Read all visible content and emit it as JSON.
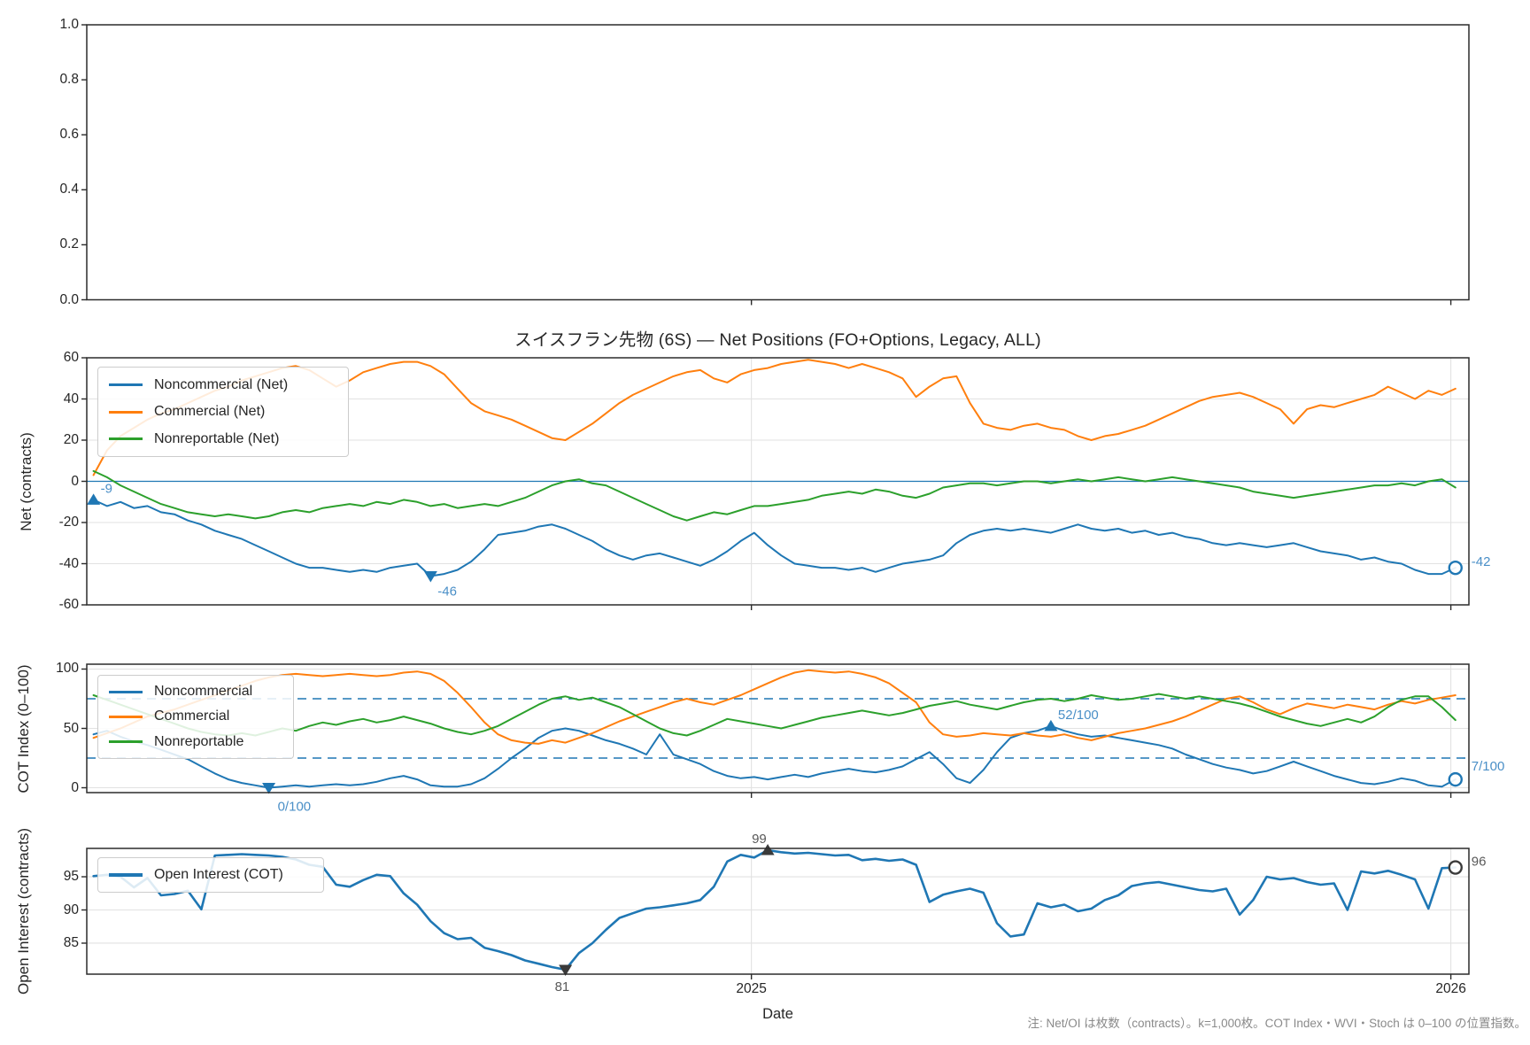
{
  "title": "スイスフラン先物 (6S) — Net Positions (FO+Options, Legacy, ALL)",
  "xlabel": "Date",
  "footnote": "注: Net/OI は枚数（contracts）。k=1,000枚。COT Index・WVI・Stoch は 0–100 の位置指数。",
  "colors": {
    "noncommercial": "#1f77b4",
    "commercial": "#ff7f0e",
    "nonreportable": "#2ca02c",
    "open_interest": "#1f77b4",
    "annotation_blue": "#4a8fc7",
    "annotation_gray": "#595959",
    "marker_dark": "#3a3a3a",
    "dashed": "#1f77b4",
    "grid": "#e2e2e2",
    "spine": "#2b2b2b"
  },
  "x_axis": {
    "label": "Date",
    "tick_labels": [
      "2025",
      "2026"
    ],
    "tick_positions": [
      48.79,
      100.66
    ],
    "n_points": 102,
    "x_unit": "week_index"
  },
  "chart_data": [
    {
      "type": "line",
      "panel": "top-empty",
      "ylabel": "",
      "ylim": [
        0,
        1
      ],
      "ytick_labels": [
        "0.0",
        "0.2",
        "0.4",
        "0.6",
        "0.8",
        "1.0"
      ],
      "ytick_values": [
        0,
        0.2,
        0.4,
        0.6,
        0.8,
        1.0
      ],
      "grid": false,
      "series": []
    },
    {
      "type": "line",
      "panel": "net-positions",
      "ylabel": "Net (contracts)",
      "ylim": [
        -60,
        60
      ],
      "ytick_labels": [
        "-60",
        "-40",
        "-20",
        "0",
        "20",
        "40",
        "60"
      ],
      "ytick_values": [
        -60,
        -40,
        -20,
        0,
        20,
        40,
        60
      ],
      "grid": true,
      "zero_line": true,
      "legend_position": "upper-left",
      "series": [
        {
          "name": "Noncommercial (Net)",
          "color_key": "noncommercial",
          "values": [
            -9,
            -12,
            -10,
            -13,
            -12,
            -15,
            -16,
            -19,
            -21,
            -24,
            -26,
            -28,
            -31,
            -34,
            -37,
            -40,
            -42,
            -42,
            -43,
            -44,
            -43,
            -44,
            -42,
            -41,
            -40,
            -46,
            -45,
            -43,
            -39,
            -33,
            -26,
            -25,
            -24,
            -22,
            -21,
            -23,
            -26,
            -29,
            -33,
            -36,
            -38,
            -36,
            -35,
            -37,
            -39,
            -41,
            -38,
            -34,
            -29,
            -25,
            -31,
            -36,
            -40,
            -41,
            -42,
            -42,
            -43,
            -42,
            -44,
            -42,
            -40,
            -39,
            -38,
            -36,
            -30,
            -26,
            -24,
            -23,
            -24,
            -23,
            -24,
            -25,
            -23,
            -21,
            -23,
            -24,
            -23,
            -25,
            -24,
            -26,
            -25,
            -27,
            -28,
            -30,
            -31,
            -30,
            -31,
            -32,
            -31,
            -30,
            -32,
            -34,
            -35,
            -36,
            -38,
            -37,
            -39,
            -40,
            -43,
            -45,
            -45,
            -42
          ]
        },
        {
          "name": "Commercial (Net)",
          "color_key": "commercial",
          "values": [
            3,
            15,
            22,
            26,
            30,
            33,
            35,
            38,
            41,
            44,
            46,
            49,
            51,
            53,
            55,
            56,
            54,
            50,
            46,
            49,
            53,
            55,
            57,
            58,
            58,
            56,
            52,
            45,
            38,
            34,
            32,
            30,
            27,
            24,
            21,
            20,
            24,
            28,
            33,
            38,
            42,
            45,
            48,
            51,
            53,
            54,
            50,
            48,
            52,
            54,
            55,
            57,
            58,
            59,
            58,
            57,
            55,
            57,
            55,
            53,
            50,
            41,
            46,
            50,
            51,
            38,
            28,
            26,
            25,
            27,
            28,
            26,
            25,
            22,
            20,
            22,
            23,
            25,
            27,
            30,
            33,
            36,
            39,
            41,
            42,
            43,
            41,
            38,
            35,
            28,
            35,
            37,
            36,
            38,
            40,
            42,
            46,
            43,
            40,
            44,
            42,
            45
          ]
        },
        {
          "name": "Nonreportable (Net)",
          "color_key": "nonreportable",
          "values": [
            5,
            2,
            -2,
            -5,
            -8,
            -11,
            -13,
            -15,
            -16,
            -17,
            -16,
            -17,
            -18,
            -17,
            -15,
            -14,
            -15,
            -13,
            -12,
            -11,
            -12,
            -10,
            -11,
            -9,
            -10,
            -12,
            -11,
            -13,
            -12,
            -11,
            -12,
            -10,
            -8,
            -5,
            -2,
            0,
            1,
            -1,
            -2,
            -5,
            -8,
            -11,
            -14,
            -17,
            -19,
            -17,
            -15,
            -16,
            -14,
            -12,
            -12,
            -11,
            -10,
            -9,
            -7,
            -6,
            -5,
            -6,
            -4,
            -5,
            -7,
            -8,
            -6,
            -3,
            -2,
            -1,
            -1,
            -2,
            -1,
            0,
            0,
            -1,
            0,
            1,
            0,
            1,
            2,
            1,
            0,
            1,
            2,
            1,
            0,
            -1,
            -2,
            -3,
            -5,
            -6,
            -7,
            -8,
            -7,
            -6,
            -5,
            -4,
            -3,
            -2,
            -2,
            -1,
            -2,
            0,
            1,
            -3
          ]
        }
      ],
      "annotations": [
        {
          "label": "-9",
          "series": "Noncommercial (Net)",
          "index": 0,
          "value": -9,
          "marker": "triangle-up",
          "placement": "above-right",
          "marker_color_key": "noncommercial",
          "text_color_key": "annotation_blue"
        },
        {
          "label": "-46",
          "series": "Noncommercial (Net)",
          "index": 25,
          "value": -46,
          "marker": "triangle-down",
          "placement": "below-right",
          "marker_color_key": "noncommercial",
          "text_color_key": "annotation_blue"
        },
        {
          "label": "-42",
          "series": "Noncommercial (Net)",
          "index": 101,
          "value": -42,
          "marker": "circle-open",
          "placement": "right",
          "marker_color_key": "noncommercial",
          "text_color_key": "annotation_blue"
        }
      ]
    },
    {
      "type": "line",
      "panel": "cot-index",
      "ylabel": "COT Index (0–100)",
      "ylim": [
        -4.1,
        104.1
      ],
      "ytick_labels": [
        "0",
        "50",
        "100"
      ],
      "ytick_values": [
        0,
        50,
        100
      ],
      "grid": true,
      "dashed_hlines": [
        25,
        75
      ],
      "legend_position": "upper-left",
      "series": [
        {
          "name": "Noncommercial",
          "color_key": "noncommercial",
          "values": [
            45,
            48,
            43,
            39,
            36,
            32,
            28,
            24,
            18,
            12,
            7,
            4,
            2,
            0,
            1,
            2,
            1,
            2,
            3,
            2,
            3,
            5,
            8,
            10,
            7,
            2,
            1,
            1,
            3,
            8,
            16,
            25,
            33,
            42,
            48,
            50,
            48,
            44,
            40,
            37,
            33,
            28,
            45,
            28,
            24,
            20,
            14,
            10,
            8,
            9,
            7,
            9,
            11,
            9,
            12,
            14,
            16,
            14,
            13,
            15,
            18,
            24,
            30,
            20,
            8,
            4,
            15,
            30,
            42,
            46,
            48,
            52,
            48,
            45,
            43,
            44,
            42,
            40,
            38,
            36,
            33,
            28,
            24,
            20,
            17,
            15,
            12,
            14,
            18,
            22,
            18,
            14,
            10,
            7,
            4,
            3,
            5,
            8,
            6,
            2,
            1,
            7
          ]
        },
        {
          "name": "Commercial",
          "color_key": "commercial",
          "values": [
            42,
            46,
            50,
            55,
            60,
            63,
            66,
            70,
            74,
            78,
            82,
            86,
            90,
            93,
            95,
            96,
            95,
            94,
            95,
            96,
            95,
            94,
            95,
            97,
            98,
            96,
            90,
            80,
            68,
            55,
            45,
            40,
            38,
            37,
            40,
            38,
            42,
            46,
            51,
            56,
            60,
            64,
            68,
            72,
            75,
            72,
            70,
            74,
            78,
            83,
            88,
            93,
            97,
            99,
            98,
            97,
            98,
            96,
            93,
            88,
            80,
            72,
            55,
            45,
            43,
            44,
            46,
            45,
            44,
            46,
            44,
            43,
            45,
            42,
            40,
            43,
            46,
            48,
            50,
            53,
            56,
            60,
            65,
            70,
            75,
            77,
            72,
            66,
            62,
            67,
            71,
            69,
            67,
            70,
            68,
            66,
            70,
            73,
            71,
            74,
            76,
            78
          ]
        },
        {
          "name": "Nonreportable",
          "color_key": "nonreportable",
          "values": [
            78,
            74,
            70,
            66,
            62,
            58,
            54,
            50,
            47,
            45,
            44,
            46,
            44,
            47,
            50,
            48,
            52,
            55,
            53,
            56,
            58,
            55,
            57,
            60,
            57,
            54,
            50,
            47,
            45,
            48,
            52,
            58,
            64,
            70,
            75,
            77,
            74,
            76,
            72,
            68,
            62,
            56,
            50,
            46,
            44,
            48,
            53,
            58,
            56,
            54,
            52,
            50,
            53,
            56,
            59,
            61,
            63,
            65,
            63,
            61,
            63,
            66,
            69,
            71,
            73,
            70,
            68,
            66,
            69,
            72,
            74,
            75,
            73,
            75,
            78,
            76,
            74,
            75,
            77,
            79,
            77,
            75,
            77,
            75,
            73,
            71,
            68,
            64,
            60,
            57,
            54,
            52,
            55,
            58,
            55,
            60,
            68,
            74,
            77,
            77,
            68,
            57
          ]
        }
      ],
      "annotations": [
        {
          "label": "0/100",
          "series": "Noncommercial",
          "index": 13,
          "value": 0,
          "marker": "triangle-down",
          "placement": "below",
          "marker_color_key": "noncommercial",
          "text_color_key": "annotation_blue"
        },
        {
          "label": "52/100",
          "series": "Noncommercial",
          "index": 71,
          "value": 52,
          "marker": "triangle-up",
          "placement": "above-right",
          "marker_color_key": "noncommercial",
          "text_color_key": "annotation_blue"
        },
        {
          "label": "7/100",
          "series": "Noncommercial",
          "index": 101,
          "value": 7,
          "marker": "circle-open",
          "placement": "right-above",
          "marker_color_key": "noncommercial",
          "text_color_key": "annotation_blue"
        }
      ]
    },
    {
      "type": "line",
      "panel": "open-interest",
      "ylabel": "Open Interest (contracts)",
      "ylim": [
        80.33,
        99.27
      ],
      "ytick_labels": [
        "85",
        "90",
        "95"
      ],
      "ytick_values": [
        85,
        90,
        95
      ],
      "grid": true,
      "legend_position": "upper-left",
      "series": [
        {
          "name": "Open Interest (COT)",
          "color_key": "open_interest",
          "line_width": 2.6,
          "values": [
            95.1,
            95.3,
            95.0,
            93.4,
            94.8,
            92.2,
            92.4,
            92.9,
            90.1,
            98.2,
            98.3,
            98.4,
            98.3,
            98.2,
            98.0,
            97.6,
            96.8,
            96.5,
            93.8,
            93.5,
            94.5,
            95.3,
            95.1,
            92.5,
            90.8,
            88.3,
            86.5,
            85.6,
            85.8,
            84.3,
            83.8,
            83.2,
            82.4,
            81.9,
            81.4,
            81.0,
            83.5,
            85.0,
            87.0,
            88.8,
            89.5,
            90.2,
            90.4,
            90.7,
            91.0,
            91.5,
            93.5,
            97.3,
            98.3,
            97.9,
            99.0,
            98.7,
            98.5,
            98.6,
            98.4,
            98.2,
            98.3,
            97.5,
            97.7,
            97.4,
            97.6,
            96.8,
            91.2,
            92.3,
            92.8,
            93.2,
            92.6,
            88.0,
            86.0,
            86.3,
            91.0,
            90.4,
            90.8,
            89.8,
            90.2,
            91.5,
            92.2,
            93.6,
            94.0,
            94.2,
            93.8,
            93.4,
            93.0,
            92.8,
            93.2,
            89.3,
            91.5,
            95.0,
            94.6,
            94.8,
            94.2,
            93.8,
            94.0,
            90.0,
            95.8,
            95.5,
            95.9,
            95.3,
            94.6,
            90.2,
            96.3,
            96.4
          ]
        }
      ],
      "annotations": [
        {
          "label": "81",
          "series": "Open Interest (COT)",
          "index": 35,
          "value": 81,
          "marker": "triangle-down",
          "placement": "below-left",
          "marker_color_key": "marker_dark",
          "text_color_key": "annotation_gray"
        },
        {
          "label": "99",
          "series": "Open Interest (COT)",
          "index": 50,
          "value": 99,
          "marker": "triangle-up",
          "placement": "above",
          "marker_color_key": "marker_dark",
          "text_color_key": "annotation_gray"
        },
        {
          "label": "96",
          "series": "Open Interest (COT)",
          "index": 101,
          "value": 96.4,
          "marker": "circle-open",
          "placement": "right",
          "marker_color_key": "marker_dark",
          "text_color_key": "annotation_gray"
        }
      ]
    }
  ]
}
